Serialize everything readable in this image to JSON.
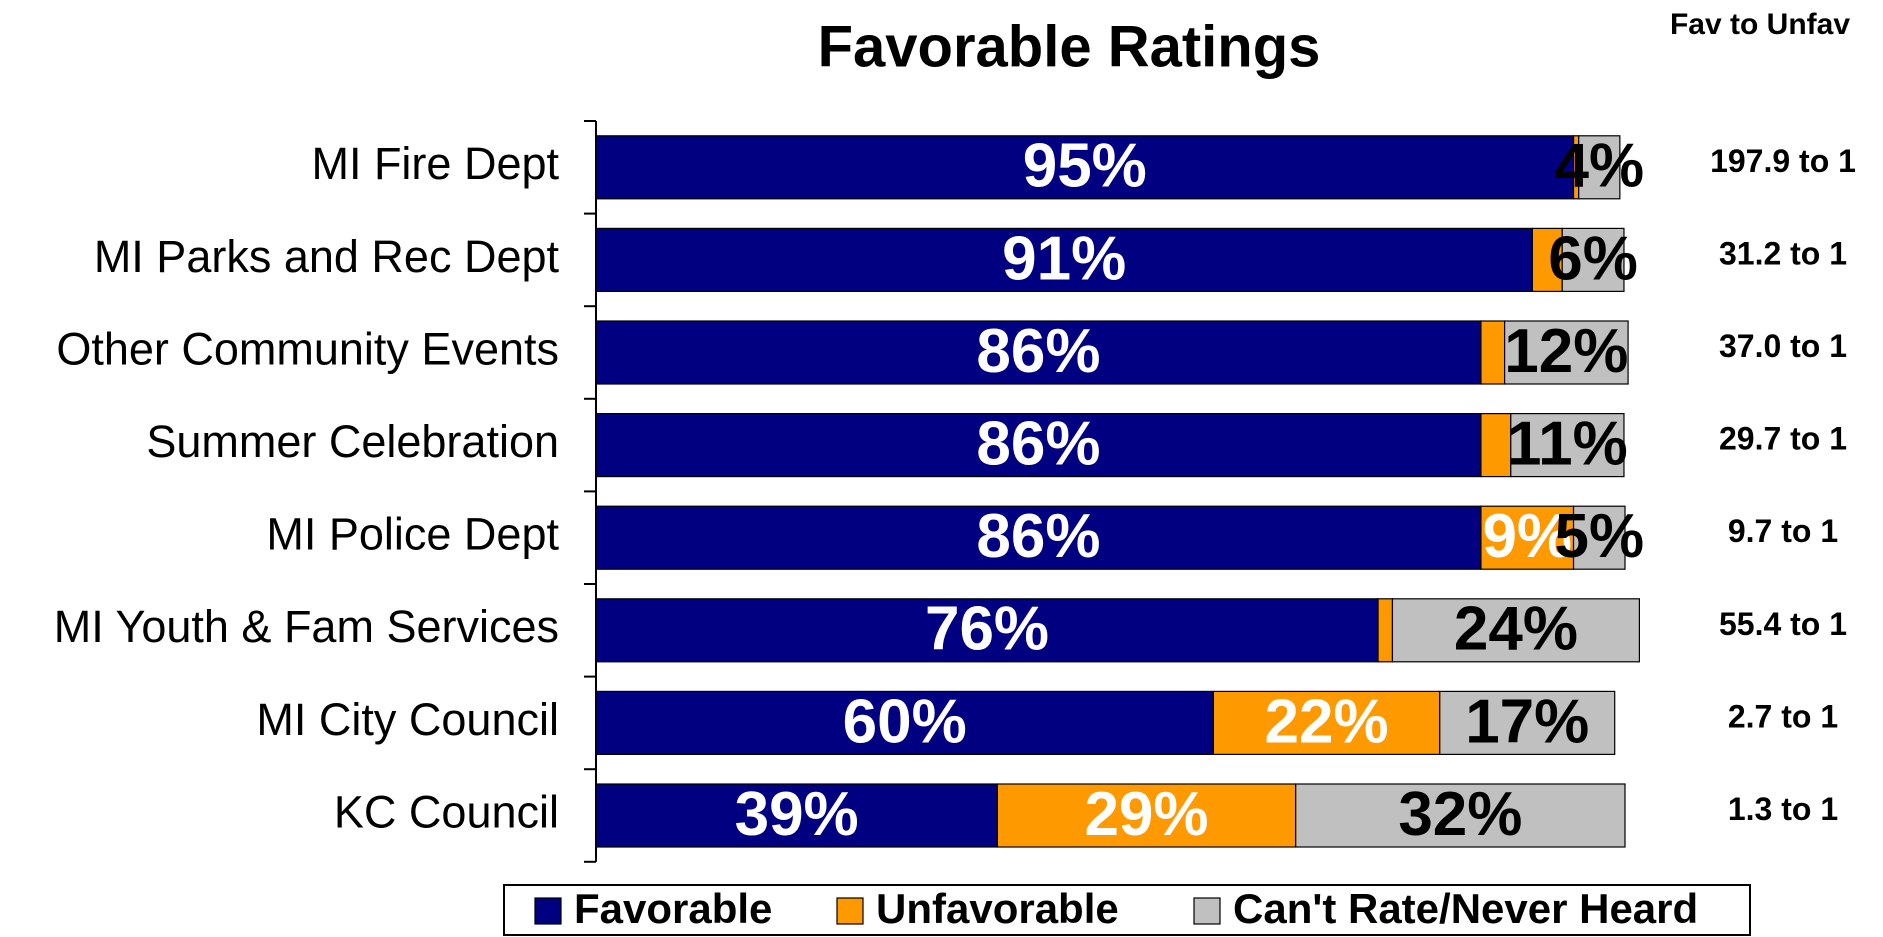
{
  "chart_data": {
    "type": "stacked_barh",
    "title": "Favorable Ratings",
    "categories": [
      "MI Fire Dept",
      "MI Parks and Rec Dept",
      "Other Community Events",
      "Summer Celebration",
      "MI Police Dept",
      "MI Youth & Fam Services",
      "MI City Council",
      "KC Council"
    ],
    "series": [
      {
        "name": "Favorable",
        "color": "#000080",
        "label_color": "#ffffff",
        "values": [
          95,
          91,
          86,
          86,
          86,
          76,
          60,
          39
        ],
        "value_labels": [
          "95%",
          "91%",
          "86%",
          "86%",
          "86%",
          "76%",
          "60%",
          "39%"
        ]
      },
      {
        "name": "Unfavorable",
        "color": "#ff9900",
        "label_color": "#ffffff",
        "values": [
          0.5,
          2.9,
          2.3,
          2.9,
          9,
          1.4,
          22,
          29
        ],
        "value_labels": [
          null,
          null,
          null,
          null,
          "9%",
          null,
          "22%",
          "29%"
        ]
      },
      {
        "name": "Can't Rate/Never Heard",
        "color": "#c0c0c0",
        "label_color": "#000000",
        "values": [
          4,
          6,
          12,
          11,
          5,
          24,
          17,
          32
        ],
        "value_labels": [
          "4%",
          "6%",
          "12%",
          "11%",
          "5%",
          "24%",
          "17%",
          "32%"
        ]
      }
    ],
    "xlim": [
      0,
      100
    ],
    "ratio_header": "Fav to Unfav",
    "ratios": [
      "197.9 to 1",
      "31.2 to 1",
      "37.0 to 1",
      "29.7 to 1",
      "9.7 to 1",
      "55.4 to 1",
      "2.7 to 1",
      "1.3 to 1"
    ],
    "legend": "bottom"
  }
}
